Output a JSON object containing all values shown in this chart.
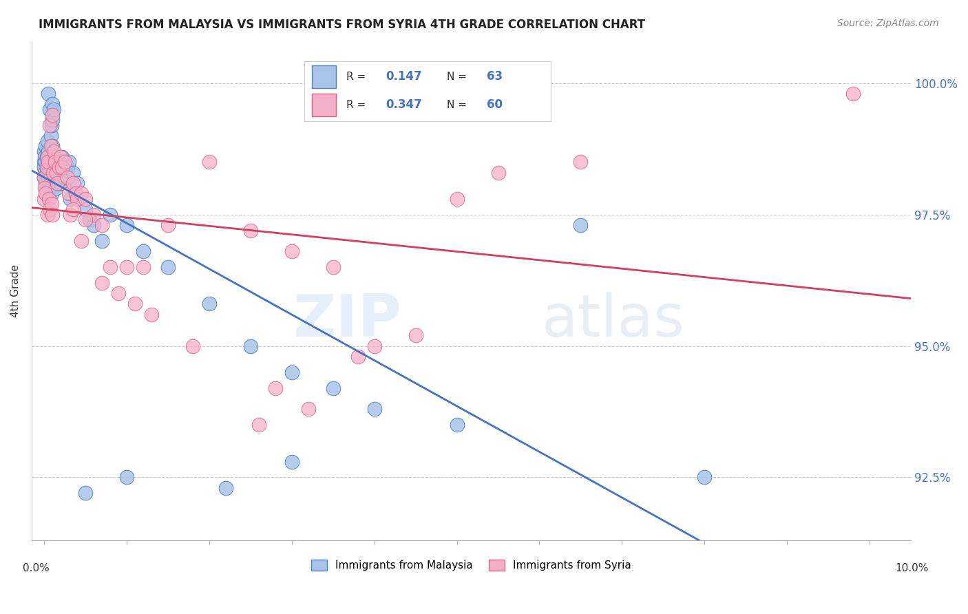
{
  "title": "IMMIGRANTS FROM MALAYSIA VS IMMIGRANTS FROM SYRIA 4TH GRADE CORRELATION CHART",
  "source": "Source: ZipAtlas.com",
  "ylabel": "4th Grade",
  "watermark_zip": "ZIP",
  "watermark_atlas": "atlas",
  "legend1_r": "0.147",
  "legend1_n": "63",
  "legend2_r": "0.347",
  "legend2_n": "60",
  "blue_fill": "#a8c4e8",
  "pink_fill": "#f4b0c8",
  "blue_edge": "#5080c0",
  "pink_edge": "#e06080",
  "blue_line": "#4472c4",
  "pink_line": "#d04060",
  "ylim_min": 91.3,
  "ylim_max": 100.8,
  "xlim_min": -0.15,
  "xlim_max": 10.5,
  "yticks": [
    92.5,
    95.0,
    97.5,
    100.0
  ],
  "blue_x": [
    0.0,
    0.0,
    0.0,
    0.0,
    0.01,
    0.01,
    0.02,
    0.02,
    0.02,
    0.03,
    0.03,
    0.04,
    0.04,
    0.05,
    0.05,
    0.05,
    0.06,
    0.06,
    0.07,
    0.07,
    0.08,
    0.08,
    0.09,
    0.09,
    0.1,
    0.1,
    0.1,
    0.11,
    0.12,
    0.12,
    0.13,
    0.15,
    0.15,
    0.16,
    0.18,
    0.2,
    0.22,
    0.25,
    0.28,
    0.3,
    0.32,
    0.35,
    0.4,
    0.5,
    0.55,
    0.6,
    0.7,
    0.8,
    1.0,
    1.2,
    1.5,
    2.0,
    2.5,
    3.0,
    3.5,
    4.0,
    5.0,
    6.5,
    1.0,
    2.2,
    0.5,
    3.0,
    8.0
  ],
  "blue_y": [
    98.7,
    98.5,
    98.4,
    98.2,
    98.6,
    98.3,
    98.8,
    98.5,
    98.1,
    98.6,
    98.3,
    98.9,
    98.4,
    99.8,
    98.7,
    98.2,
    98.4,
    98.0,
    99.5,
    98.3,
    99.0,
    98.2,
    99.2,
    97.9,
    99.6,
    99.3,
    98.8,
    98.3,
    99.5,
    98.4,
    98.6,
    98.6,
    98.0,
    98.4,
    98.3,
    98.1,
    98.6,
    98.2,
    98.4,
    98.5,
    97.8,
    98.3,
    98.1,
    97.6,
    97.4,
    97.3,
    97.0,
    97.5,
    97.3,
    96.8,
    96.5,
    95.8,
    95.0,
    94.5,
    94.2,
    93.8,
    93.5,
    97.3,
    92.5,
    92.3,
    92.2,
    92.8,
    92.5
  ],
  "pink_x": [
    0.0,
    0.0,
    0.01,
    0.02,
    0.03,
    0.04,
    0.04,
    0.05,
    0.06,
    0.07,
    0.07,
    0.08,
    0.09,
    0.1,
    0.1,
    0.11,
    0.12,
    0.13,
    0.15,
    0.16,
    0.18,
    0.2,
    0.22,
    0.25,
    0.28,
    0.3,
    0.32,
    0.35,
    0.38,
    0.4,
    0.45,
    0.5,
    0.6,
    0.7,
    0.8,
    1.0,
    1.2,
    1.5,
    2.0,
    2.5,
    3.0,
    3.2,
    3.5,
    4.0,
    5.5,
    6.5,
    1.8,
    2.8,
    0.45,
    0.7,
    1.1,
    1.3,
    2.6,
    3.8,
    4.5,
    5.0,
    0.35,
    0.5,
    0.9,
    9.8
  ],
  "pink_y": [
    98.2,
    97.8,
    98.0,
    97.9,
    98.4,
    98.6,
    97.5,
    98.5,
    97.8,
    99.2,
    97.6,
    98.8,
    97.7,
    99.4,
    97.5,
    98.3,
    98.7,
    98.5,
    98.3,
    98.1,
    98.4,
    98.6,
    98.4,
    98.5,
    98.2,
    97.9,
    97.5,
    98.1,
    97.9,
    97.8,
    97.9,
    97.8,
    97.5,
    97.3,
    96.5,
    96.5,
    96.5,
    97.3,
    98.5,
    97.2,
    96.8,
    93.8,
    96.5,
    95.0,
    98.3,
    98.5,
    95.0,
    94.2,
    97.0,
    96.2,
    95.8,
    95.6,
    93.5,
    94.8,
    95.2,
    97.8,
    97.6,
    97.4,
    96.0,
    99.8
  ]
}
